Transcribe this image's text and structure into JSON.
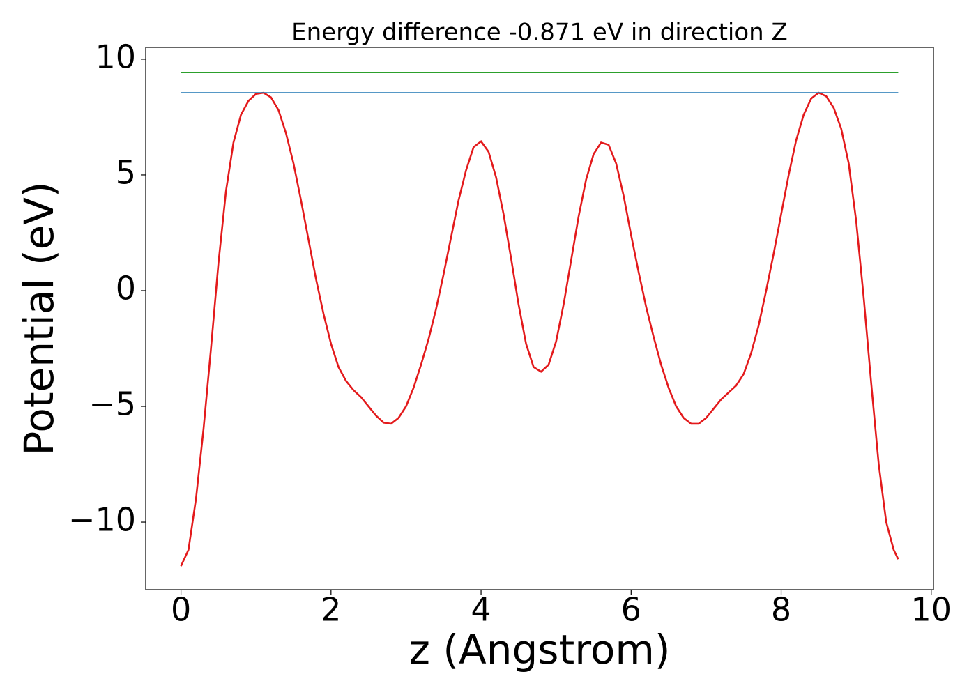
{
  "chart_data": {
    "type": "line",
    "title": "Energy difference -0.871 eV in direction Z",
    "xlabel": "z (Angstrom)",
    "ylabel": "Potential (eV)",
    "xlim": [
      -0.47,
      10.03
    ],
    "ylim": [
      -12.92,
      10.51
    ],
    "xticks": [
      0,
      2,
      4,
      6,
      8,
      10
    ],
    "yticks": [
      {
        "value": -10,
        "label": "−10"
      },
      {
        "value": -5,
        "label": "−5"
      },
      0,
      5,
      10
    ],
    "grid": false,
    "series": [
      {
        "color": "#e31a1c",
        "x": [
          0,
          0.1,
          0.2,
          0.3,
          0.4,
          0.5,
          0.6,
          0.7,
          0.8,
          0.9,
          1.0,
          1.1,
          1.2,
          1.3,
          1.4,
          1.5,
          1.6,
          1.7,
          1.8,
          1.9,
          2.0,
          2.1,
          2.2,
          2.3,
          2.4,
          2.5,
          2.6,
          2.7,
          2.8,
          2.9,
          3.0,
          3.1,
          3.2,
          3.3,
          3.4,
          3.5,
          3.6,
          3.7,
          3.8,
          3.9,
          4.0,
          4.1,
          4.2,
          4.3,
          4.4,
          4.5,
          4.6,
          4.7,
          4.8,
          4.9,
          5.0,
          5.1,
          5.2,
          5.3,
          5.4,
          5.5,
          5.6,
          5.7,
          5.8,
          5.9,
          6.0,
          6.1,
          6.2,
          6.3,
          6.4,
          6.5,
          6.6,
          6.7,
          6.8,
          6.9,
          7.0,
          7.1,
          7.2,
          7.3,
          7.4,
          7.5,
          7.6,
          7.7,
          7.8,
          7.9,
          8.0,
          8.1,
          8.2,
          8.3,
          8.4,
          8.5,
          8.6,
          8.7,
          8.8,
          8.9,
          9.0,
          9.1,
          9.2,
          9.3,
          9.4,
          9.5,
          9.56
        ],
        "values": [
          -11.9,
          -11.2,
          -9.0,
          -6.0,
          -2.5,
          1.2,
          4.3,
          6.4,
          7.6,
          8.2,
          8.5,
          8.55,
          8.35,
          7.8,
          6.8,
          5.5,
          3.9,
          2.2,
          0.5,
          -1.0,
          -2.3,
          -3.3,
          -3.9,
          -4.3,
          -4.6,
          -5.0,
          -5.4,
          -5.7,
          -5.75,
          -5.5,
          -5.0,
          -4.2,
          -3.2,
          -2.1,
          -0.8,
          0.7,
          2.3,
          3.9,
          5.2,
          6.2,
          6.45,
          6.0,
          4.9,
          3.3,
          1.4,
          -0.6,
          -2.3,
          -3.3,
          -3.5,
          -3.2,
          -2.2,
          -0.6,
          1.3,
          3.2,
          4.8,
          5.9,
          6.4,
          6.3,
          5.5,
          4.1,
          2.4,
          0.8,
          -0.7,
          -2.0,
          -3.2,
          -4.2,
          -5.0,
          -5.5,
          -5.75,
          -5.75,
          -5.5,
          -5.1,
          -4.7,
          -4.4,
          -4.1,
          -3.6,
          -2.7,
          -1.5,
          0.0,
          1.6,
          3.3,
          5.0,
          6.5,
          7.6,
          8.3,
          8.55,
          8.4,
          7.9,
          7.0,
          5.5,
          3.0,
          -0.3,
          -4.0,
          -7.5,
          -10.0,
          -11.2,
          -11.6
        ]
      },
      {
        "color": "#1f77b4",
        "x": [
          0,
          9.56
        ],
        "values": [
          8.55,
          8.55
        ]
      },
      {
        "color": "#2ca02c",
        "x": [
          0,
          9.56
        ],
        "values": [
          9.42,
          9.42
        ]
      }
    ]
  }
}
